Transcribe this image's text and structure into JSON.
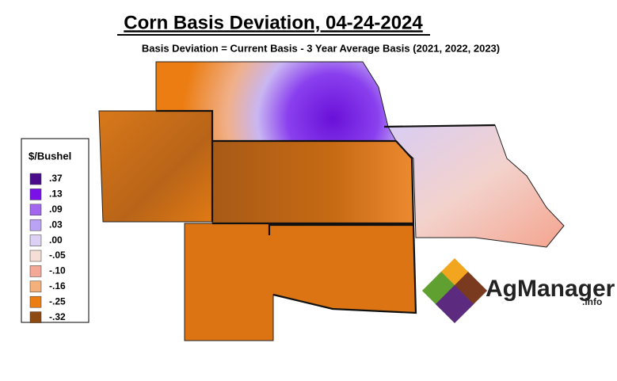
{
  "header": {
    "title": "Corn Basis Deviation, 04-24-2024",
    "subtitle": "Basis Deviation = Current Basis - 3 Year Average Basis (2021, 2022, 2023)"
  },
  "legend": {
    "title": "$/Bushel",
    "entries": [
      {
        "label": ".37",
        "color": "#4b0c8c"
      },
      {
        "label": ".13",
        "color": "#7a12e8"
      },
      {
        "label": ".09",
        "color": "#a366ee"
      },
      {
        "label": ".03",
        "color": "#b9a3f2"
      },
      {
        "label": ".00",
        "color": "#ddd0f5"
      },
      {
        "label": "-.05",
        "color": "#f5ded5"
      },
      {
        "label": "-.10",
        "color": "#f4a896"
      },
      {
        "label": "-.16",
        "color": "#f4b07a"
      },
      {
        "label": "-.25",
        "color": "#ec7d12"
      },
      {
        "label": "-.32",
        "color": "#8e4a10"
      }
    ]
  },
  "logo": {
    "name": "AgManager",
    "suffix": ".info"
  }
}
